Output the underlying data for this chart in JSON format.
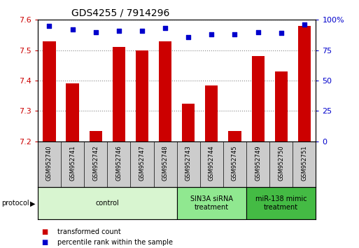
{
  "title": "GDS4255 / 7914296",
  "samples": [
    "GSM952740",
    "GSM952741",
    "GSM952742",
    "GSM952746",
    "GSM952747",
    "GSM952748",
    "GSM952743",
    "GSM952744",
    "GSM952745",
    "GSM952749",
    "GSM952750",
    "GSM952751"
  ],
  "transformed_counts": [
    7.53,
    7.39,
    7.235,
    7.51,
    7.5,
    7.53,
    7.325,
    7.385,
    7.235,
    7.48,
    7.43,
    7.58
  ],
  "percentile_ranks": [
    95,
    92,
    90,
    91,
    91,
    93,
    86,
    88,
    88,
    90,
    89,
    96
  ],
  "ylim_left": [
    7.2,
    7.6
  ],
  "ylim_right": [
    0,
    100
  ],
  "yticks_left": [
    7.2,
    7.3,
    7.4,
    7.5,
    7.6
  ],
  "yticks_right": [
    0,
    25,
    50,
    75,
    100
  ],
  "bar_color": "#cc0000",
  "dot_color": "#0000cc",
  "grid_color": "#888888",
  "protocol_groups": [
    {
      "label": "control",
      "start": 0,
      "end": 6,
      "color": "#d8f5d0"
    },
    {
      "label": "SIN3A siRNA\ntreatment",
      "start": 6,
      "end": 9,
      "color": "#90e890"
    },
    {
      "label": "miR-138 mimic\ntreatment",
      "start": 9,
      "end": 12,
      "color": "#44bb44"
    }
  ],
  "legend_items": [
    {
      "label": "transformed count",
      "color": "#cc0000"
    },
    {
      "label": "percentile rank within the sample",
      "color": "#0000cc"
    }
  ],
  "bar_width": 0.55,
  "sample_box_color": "#cccccc",
  "title_fontsize": 10,
  "axis_fontsize": 8,
  "sample_fontsize": 6,
  "proto_fontsize": 7,
  "legend_fontsize": 7
}
